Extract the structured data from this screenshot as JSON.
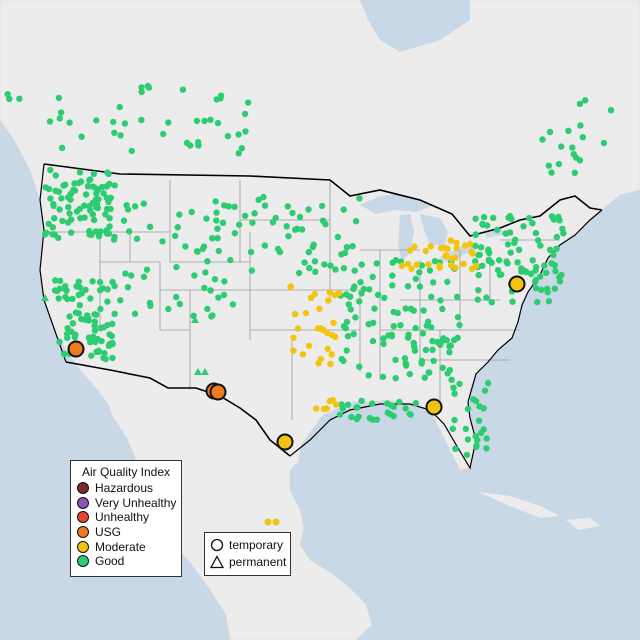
{
  "legend": {
    "title": "Air Quality Index",
    "categories": [
      {
        "label": "Hazardous",
        "color": "#7e2a2a"
      },
      {
        "label": "Very Unhealthy",
        "color": "#8b55b8"
      },
      {
        "label": "Unhealthy",
        "color": "#e8452c"
      },
      {
        "label": "USG",
        "color": "#f07b1f"
      },
      {
        "label": "Moderate",
        "color": "#f2c40f"
      },
      {
        "label": "Good",
        "color": "#2ecc71"
      }
    ]
  },
  "monitor_types": [
    {
      "label": "temporary",
      "symbol": "circle"
    },
    {
      "label": "permanent",
      "symbol": "triangle"
    }
  ],
  "colors": {
    "ocean": "#c9d8e6",
    "land": "#ececec",
    "state_lines": "#9a9a9a",
    "national_border": "#000000"
  }
}
